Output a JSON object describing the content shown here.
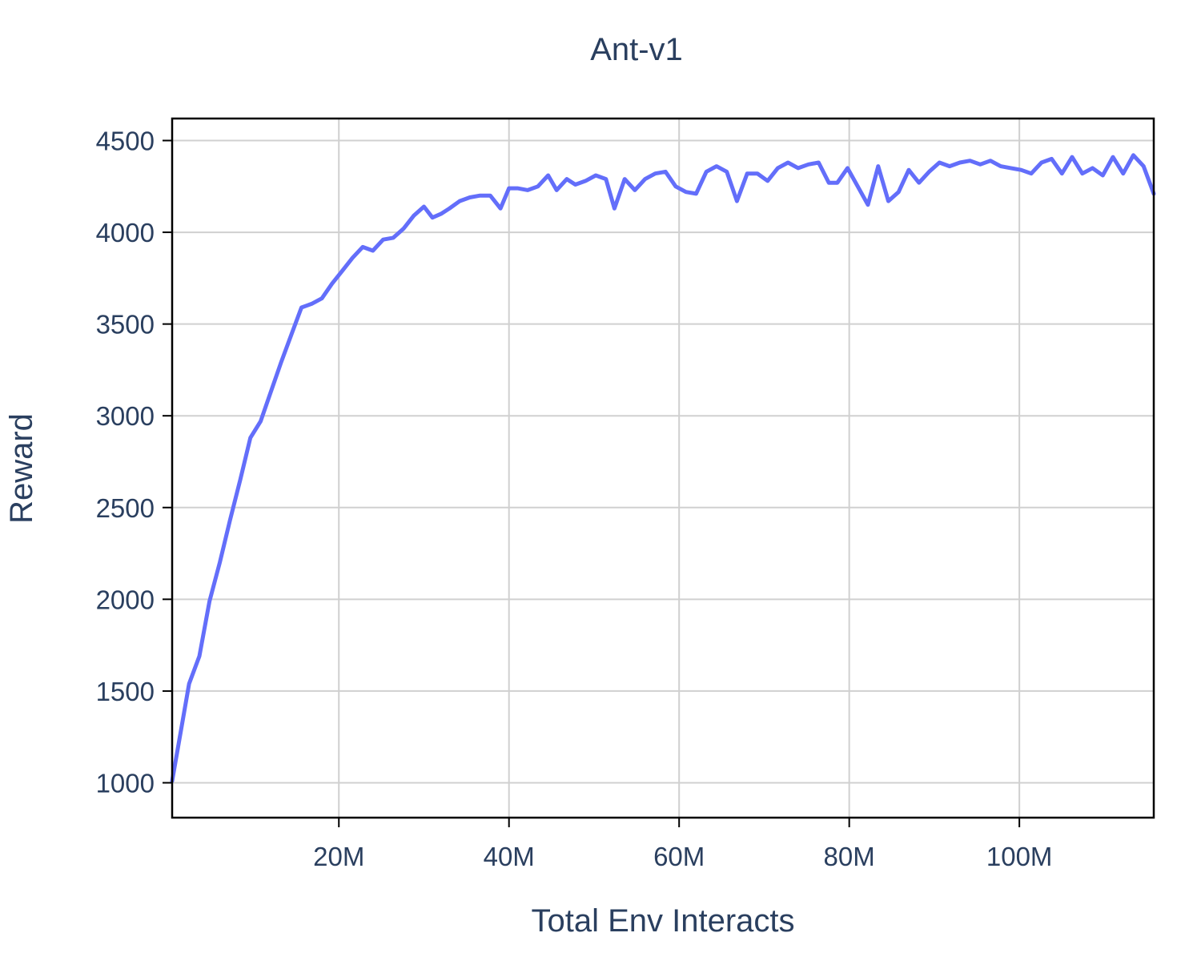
{
  "chart_data": {
    "type": "line",
    "title": "Ant-v1",
    "xlabel": "Total Env Interacts",
    "ylabel": "Reward",
    "xlim": [
      400000,
      115800000
    ],
    "ylim": [
      810,
      4620
    ],
    "x_ticks": [
      20000000,
      40000000,
      60000000,
      80000000,
      100000000
    ],
    "x_tick_labels": [
      "20M",
      "40M",
      "60M",
      "80M",
      "100M"
    ],
    "y_ticks": [
      1000,
      1500,
      2000,
      2500,
      3000,
      3500,
      4000,
      4500
    ],
    "y_tick_labels": [
      "1000",
      "1500",
      "2000",
      "2500",
      "3000",
      "3500",
      "4000",
      "4500"
    ],
    "grid": true,
    "legend": "none",
    "colors": {
      "line": "#636efa",
      "grid": "#d0d0d0",
      "text": "#2a3f5f",
      "frame": "#000000"
    },
    "series": [
      {
        "x": [
          400000,
          2400000,
          3600000,
          4800000,
          6000000,
          7200000,
          8400000,
          9600000,
          10800000,
          12000000,
          13200000,
          14400000,
          15600000,
          16800000,
          18000000,
          19200000,
          20400000,
          21600000,
          22800000,
          24000000,
          25200000,
          26400000,
          27600000,
          28800000,
          30000000,
          31000000,
          32000000,
          33000000,
          34200000,
          35400000,
          36600000,
          37800000,
          39000000,
          40000000,
          41000000,
          42200000,
          43400000,
          44600000,
          45600000,
          46800000,
          47800000,
          49000000,
          50200000,
          51400000,
          52400000,
          53600000,
          54800000,
          56000000,
          57200000,
          58400000,
          59600000,
          60800000,
          62000000,
          63200000,
          64400000,
          65600000,
          66800000,
          68000000,
          69200000,
          70400000,
          71600000,
          72800000,
          74000000,
          75200000,
          76400000,
          77600000,
          78600000,
          79800000,
          81000000,
          82200000,
          83400000,
          84600000,
          85800000,
          87000000,
          88200000,
          89400000,
          90600000,
          91800000,
          93000000,
          94200000,
          95400000,
          96600000,
          97800000,
          99000000,
          100200000,
          101400000,
          102600000,
          103800000,
          105000000,
          106200000,
          107400000,
          108600000,
          109800000,
          111000000,
          112200000,
          113400000,
          114600000,
          115800000
        ],
        "y": [
          1010,
          1540,
          1690,
          1990,
          2200,
          2430,
          2650,
          2880,
          2970,
          3130,
          3290,
          3440,
          3590,
          3610,
          3640,
          3720,
          3790,
          3860,
          3920,
          3900,
          3960,
          3970,
          4020,
          4090,
          4140,
          4080,
          4100,
          4130,
          4170,
          4190,
          4200,
          4200,
          4130,
          4240,
          4240,
          4230,
          4250,
          4310,
          4230,
          4290,
          4260,
          4280,
          4310,
          4290,
          4130,
          4290,
          4230,
          4290,
          4320,
          4330,
          4250,
          4220,
          4210,
          4330,
          4360,
          4330,
          4170,
          4320,
          4320,
          4280,
          4350,
          4380,
          4350,
          4370,
          4380,
          4270,
          4270,
          4350,
          4250,
          4150,
          4360,
          4170,
          4220,
          4340,
          4270,
          4330,
          4380,
          4360,
          4380,
          4390,
          4370,
          4390,
          4360,
          4350,
          4340,
          4320,
          4380,
          4400,
          4320,
          4410,
          4320,
          4350,
          4310,
          4410,
          4320,
          4420,
          4360,
          4210
        ]
      }
    ]
  }
}
